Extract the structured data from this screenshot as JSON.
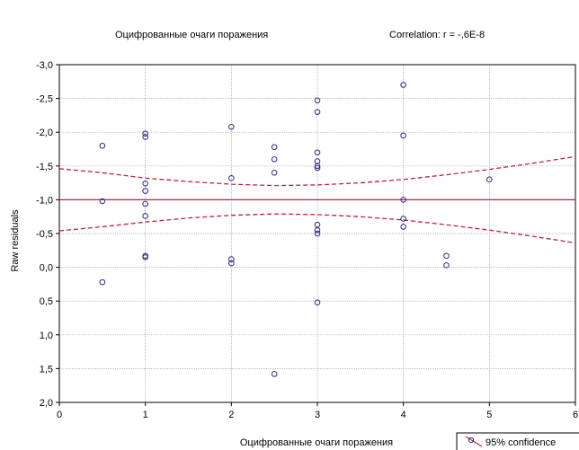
{
  "chart_data": {
    "type": "scatter",
    "title": "Оцифрованные очаги поражения",
    "subtitle": "Correlation: r = -,6E-8",
    "xlabel": "Оцифрованные очаги поражения",
    "ylabel": "Raw residuals",
    "xlim": [
      0,
      6
    ],
    "ylim": [
      -3.0,
      2.0
    ],
    "y_reversed": true,
    "grid": true,
    "x_ticks": [
      0,
      1,
      2,
      3,
      4,
      5,
      6
    ],
    "x_tick_labels": [
      "0",
      "1",
      "2",
      "3",
      "4",
      "5",
      "6"
    ],
    "y_ticks": [
      -3.0,
      -2.5,
      -2.0,
      -1.5,
      -1.0,
      -0.5,
      0.0,
      0.5,
      1.0,
      1.5,
      2.0
    ],
    "y_tick_labels": [
      "-3,0",
      "-2,5",
      "-2,0",
      "-1,5",
      "-1,0",
      "-0,5",
      "0,0",
      "0,5",
      "1,0",
      "1,5",
      "2,0"
    ],
    "legend": {
      "label": "95% confidence",
      "placement": "bottom-right"
    },
    "colors": {
      "points": "#2a2a8c",
      "line": "#c0203a",
      "grid": "#a0a0a0",
      "background": "#ffffff"
    },
    "points": [
      {
        "x": 0.5,
        "y": -1.8
      },
      {
        "x": 0.5,
        "y": -0.98
      },
      {
        "x": 0.5,
        "y": 0.22
      },
      {
        "x": 1.0,
        "y": -1.98
      },
      {
        "x": 1.0,
        "y": -1.93
      },
      {
        "x": 1.0,
        "y": -1.24
      },
      {
        "x": 1.0,
        "y": -1.13
      },
      {
        "x": 1.0,
        "y": -0.94
      },
      {
        "x": 1.0,
        "y": -0.76
      },
      {
        "x": 1.0,
        "y": -0.17
      },
      {
        "x": 1.0,
        "y": -0.15
      },
      {
        "x": 2.0,
        "y": -2.08
      },
      {
        "x": 2.0,
        "y": -1.32
      },
      {
        "x": 2.0,
        "y": -0.12
      },
      {
        "x": 2.0,
        "y": -0.06
      },
      {
        "x": 2.5,
        "y": -1.78
      },
      {
        "x": 2.5,
        "y": -1.6
      },
      {
        "x": 2.5,
        "y": -1.4
      },
      {
        "x": 2.5,
        "y": 1.58
      },
      {
        "x": 3.0,
        "y": -2.47
      },
      {
        "x": 3.0,
        "y": -2.3
      },
      {
        "x": 3.0,
        "y": -1.7
      },
      {
        "x": 3.0,
        "y": -1.57
      },
      {
        "x": 3.0,
        "y": -1.5
      },
      {
        "x": 3.0,
        "y": -1.47
      },
      {
        "x": 3.0,
        "y": -0.63
      },
      {
        "x": 3.0,
        "y": -0.55
      },
      {
        "x": 3.0,
        "y": -0.5
      },
      {
        "x": 3.0,
        "y": 0.52
      },
      {
        "x": 4.0,
        "y": -2.7
      },
      {
        "x": 4.0,
        "y": -1.95
      },
      {
        "x": 4.0,
        "y": -1.0
      },
      {
        "x": 4.0,
        "y": -0.72
      },
      {
        "x": 4.0,
        "y": -0.6
      },
      {
        "x": 4.5,
        "y": -0.17
      },
      {
        "x": 4.5,
        "y": -0.03
      },
      {
        "x": 5.0,
        "y": -1.3
      }
    ],
    "fit_line": {
      "x": [
        0,
        6
      ],
      "y": [
        -1.0,
        -1.0
      ]
    },
    "confidence_upper": {
      "x": [
        0,
        0.5,
        1,
        1.5,
        2,
        2.5,
        3,
        3.5,
        4,
        4.5,
        5,
        5.5,
        6
      ],
      "y": [
        -1.46,
        -1.4,
        -1.32,
        -1.27,
        -1.23,
        -1.21,
        -1.22,
        -1.25,
        -1.3,
        -1.37,
        -1.45,
        -1.54,
        -1.64
      ]
    },
    "confidence_lower": {
      "x": [
        0,
        0.5,
        1,
        1.5,
        2,
        2.5,
        3,
        3.5,
        4,
        4.5,
        5,
        5.5,
        6
      ],
      "y": [
        -0.54,
        -0.6,
        -0.67,
        -0.73,
        -0.77,
        -0.79,
        -0.78,
        -0.75,
        -0.7,
        -0.63,
        -0.55,
        -0.46,
        -0.36
      ]
    }
  }
}
